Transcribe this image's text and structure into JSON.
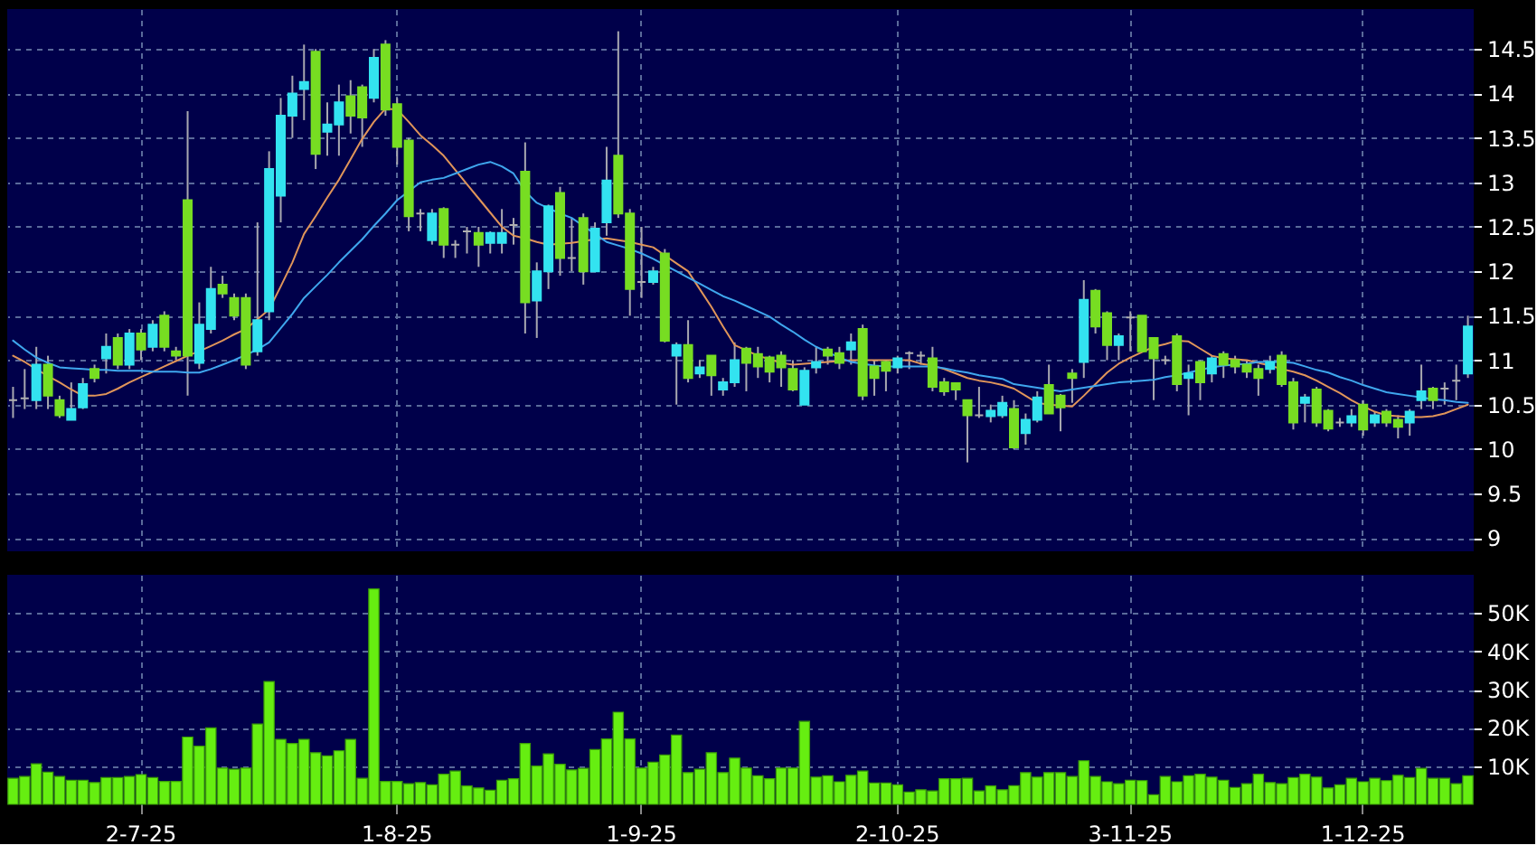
{
  "chart_data": [
    {
      "type": "candlestick",
      "tick_labels": "y",
      "grid": true,
      "categories": [
        null,
        null,
        null,
        null,
        null,
        null,
        null,
        null,
        null,
        null,
        null,
        null,
        null,
        null,
        null,
        null,
        null,
        null,
        null,
        null,
        null,
        null,
        null,
        null,
        null,
        null,
        null,
        null,
        null,
        null,
        null,
        null,
        null,
        null,
        null,
        null,
        null,
        null,
        null,
        null,
        null,
        null,
        null,
        null,
        null,
        null,
        null,
        null,
        null,
        null,
        null,
        null,
        null,
        null,
        null,
        null,
        null,
        null,
        null,
        null,
        null,
        null,
        null,
        null,
        null,
        null,
        null,
        null,
        null,
        null,
        null,
        null,
        null,
        null,
        null,
        null,
        null,
        null,
        null,
        null,
        null,
        null,
        null,
        null,
        null,
        null,
        null,
        null,
        null,
        null,
        null,
        null,
        null,
        null,
        null,
        null,
        null,
        null,
        null,
        null,
        null,
        null,
        null,
        null,
        null,
        null,
        null,
        null,
        null,
        null,
        null,
        null,
        null,
        null,
        null,
        null,
        null,
        null,
        null,
        null,
        null,
        null,
        null,
        null,
        null,
        null
      ],
      "ohlc": [
        [
          10.55,
          10.7,
          10.35,
          10.55
        ],
        [
          10.57,
          10.9,
          10.45,
          10.57
        ],
        [
          10.55,
          11.15,
          10.45,
          10.95
        ],
        [
          10.95,
          11.05,
          10.45,
          10.6
        ],
        [
          10.55,
          10.6,
          10.35,
          10.38
        ],
        [
          10.33,
          10.75,
          10.33,
          10.45
        ],
        [
          10.47,
          10.8,
          10.45,
          10.73
        ],
        [
          10.9,
          10.95,
          10.75,
          10.8
        ],
        [
          11.02,
          11.3,
          10.85,
          11.15
        ],
        [
          11.25,
          11.3,
          10.9,
          10.95
        ],
        [
          10.95,
          11.35,
          10.9,
          11.3
        ],
        [
          11.3,
          11.35,
          11.0,
          11.12
        ],
        [
          11.15,
          11.45,
          11.1,
          11.4
        ],
        [
          11.5,
          11.55,
          11.1,
          11.15
        ],
        [
          11.1,
          11.15,
          11.0,
          11.05
        ],
        [
          12.8,
          13.8,
          10.6,
          11.05
        ],
        [
          10.97,
          11.65,
          10.9,
          11.4
        ],
        [
          11.35,
          12.05,
          11.3,
          11.8
        ],
        [
          11.85,
          11.95,
          11.7,
          11.75
        ],
        [
          11.7,
          11.75,
          11.45,
          11.5
        ],
        [
          11.7,
          11.75,
          10.9,
          10.95
        ],
        [
          11.1,
          12.55,
          11.05,
          11.45
        ],
        [
          11.55,
          13.35,
          11.45,
          13.15
        ],
        [
          12.85,
          13.95,
          12.55,
          13.75
        ],
        [
          13.75,
          14.2,
          13.5,
          14.0
        ],
        [
          14.05,
          14.55,
          13.7,
          14.13
        ],
        [
          14.47,
          14.5,
          13.15,
          13.32
        ],
        [
          13.57,
          13.9,
          13.3,
          13.65
        ],
        [
          13.65,
          14.1,
          13.3,
          13.9
        ],
        [
          13.97,
          14.15,
          13.55,
          13.75
        ],
        [
          14.07,
          14.1,
          13.4,
          13.73
        ],
        [
          13.95,
          14.5,
          13.9,
          14.4
        ],
        [
          14.55,
          14.6,
          13.75,
          13.82
        ],
        [
          13.88,
          13.95,
          13.2,
          13.4
        ],
        [
          13.47,
          13.5,
          12.45,
          12.62
        ],
        [
          12.65,
          12.7,
          12.45,
          12.65
        ],
        [
          12.35,
          12.7,
          12.3,
          12.65
        ],
        [
          12.7,
          12.72,
          12.15,
          12.3
        ],
        [
          12.3,
          12.35,
          12.15,
          12.3
        ],
        [
          12.45,
          12.5,
          12.2,
          12.45
        ],
        [
          12.43,
          12.5,
          12.05,
          12.3
        ],
        [
          12.32,
          12.45,
          12.2,
          12.43
        ],
        [
          12.32,
          12.7,
          12.2,
          12.43
        ],
        [
          12.52,
          12.6,
          12.3,
          12.52
        ],
        [
          13.12,
          13.45,
          11.3,
          11.65
        ],
        [
          11.67,
          12.1,
          11.25,
          12.0
        ],
        [
          12.0,
          12.75,
          11.8,
          12.73
        ],
        [
          12.88,
          12.95,
          11.95,
          12.15
        ],
        [
          12.15,
          12.6,
          12.0,
          12.15
        ],
        [
          12.6,
          12.65,
          11.85,
          12.0
        ],
        [
          12.0,
          12.55,
          12.0,
          12.48
        ],
        [
          12.55,
          13.4,
          12.4,
          13.02
        ],
        [
          13.3,
          14.7,
          12.6,
          12.65
        ],
        [
          12.65,
          12.7,
          11.5,
          11.8
        ],
        [
          11.88,
          12.5,
          11.7,
          11.88
        ],
        [
          11.88,
          12.05,
          11.85,
          12.0
        ],
        [
          12.2,
          12.25,
          11.2,
          11.22
        ],
        [
          11.05,
          11.2,
          10.5,
          11.17
        ],
        [
          11.17,
          11.45,
          10.75,
          10.8
        ],
        [
          10.85,
          11.0,
          10.8,
          10.92
        ],
        [
          11.05,
          11.05,
          10.6,
          10.83
        ],
        [
          10.67,
          10.8,
          10.6,
          10.75
        ],
        [
          10.75,
          11.2,
          10.7,
          11.0
        ],
        [
          11.13,
          11.15,
          10.65,
          10.97
        ],
        [
          11.07,
          11.15,
          10.8,
          10.93
        ],
        [
          11.03,
          11.05,
          10.75,
          10.87
        ],
        [
          11.05,
          11.1,
          10.7,
          10.92
        ],
        [
          10.9,
          11.0,
          10.65,
          10.67
        ],
        [
          10.5,
          10.92,
          10.5,
          10.88
        ],
        [
          10.92,
          11.15,
          10.85,
          10.98
        ],
        [
          11.12,
          11.15,
          10.95,
          11.05
        ],
        [
          11.08,
          11.15,
          10.9,
          10.97
        ],
        [
          11.12,
          11.3,
          10.95,
          11.2
        ],
        [
          11.35,
          11.4,
          10.55,
          10.6
        ],
        [
          10.93,
          11.0,
          10.6,
          10.8
        ],
        [
          10.98,
          11.0,
          10.65,
          10.88
        ],
        [
          10.92,
          11.05,
          10.85,
          11.02
        ],
        [
          11.08,
          11.1,
          10.9,
          11.08
        ],
        [
          11.05,
          11.1,
          10.95,
          11.05
        ],
        [
          11.02,
          11.15,
          10.65,
          10.7
        ],
        [
          10.75,
          10.8,
          10.6,
          10.65
        ],
        [
          10.74,
          10.75,
          10.55,
          10.67
        ],
        [
          10.55,
          10.55,
          9.85,
          10.38
        ],
        [
          10.38,
          10.7,
          10.35,
          10.38
        ],
        [
          10.37,
          10.5,
          10.3,
          10.43
        ],
        [
          10.38,
          10.6,
          10.35,
          10.52
        ],
        [
          10.45,
          10.55,
          10.0,
          10.02
        ],
        [
          10.18,
          10.4,
          10.05,
          10.33
        ],
        [
          10.33,
          10.65,
          10.3,
          10.58
        ],
        [
          10.72,
          10.95,
          10.4,
          10.4
        ],
        [
          10.6,
          10.62,
          10.2,
          10.47
        ],
        [
          10.85,
          10.9,
          10.52,
          10.8
        ],
        [
          10.98,
          11.9,
          10.8,
          11.68
        ],
        [
          11.78,
          11.8,
          11.3,
          11.38
        ],
        [
          11.53,
          11.55,
          11.0,
          11.17
        ],
        [
          11.17,
          11.3,
          11.0,
          11.27
        ],
        [
          11.48,
          11.55,
          11.1,
          11.48
        ],
        [
          11.5,
          11.5,
          11.1,
          11.1
        ],
        [
          11.25,
          11.25,
          10.55,
          11.02
        ],
        [
          11.0,
          11.05,
          10.95,
          11.0
        ],
        [
          11.27,
          11.3,
          10.65,
          10.73
        ],
        [
          10.8,
          10.95,
          10.38,
          10.85
        ],
        [
          10.98,
          11.0,
          10.55,
          10.75
        ],
        [
          10.85,
          11.05,
          10.75,
          11.02
        ],
        [
          11.07,
          11.1,
          10.8,
          10.95
        ],
        [
          11.0,
          11.05,
          10.85,
          10.93
        ],
        [
          10.95,
          11.0,
          10.8,
          10.87
        ],
        [
          10.9,
          10.95,
          10.6,
          10.8
        ],
        [
          10.9,
          11.05,
          10.85,
          10.98
        ],
        [
          11.05,
          11.1,
          10.7,
          10.73
        ],
        [
          10.75,
          10.8,
          10.22,
          10.3
        ],
        [
          10.52,
          10.62,
          10.3,
          10.58
        ],
        [
          10.67,
          10.7,
          10.25,
          10.3
        ],
        [
          10.43,
          10.45,
          10.2,
          10.23
        ],
        [
          10.3,
          10.35,
          10.25,
          10.3
        ],
        [
          10.3,
          10.45,
          10.25,
          10.37
        ],
        [
          10.5,
          10.55,
          10.15,
          10.22
        ],
        [
          10.3,
          10.42,
          10.25,
          10.38
        ],
        [
          10.42,
          10.45,
          10.25,
          10.3
        ],
        [
          10.33,
          10.38,
          10.12,
          10.25
        ],
        [
          10.3,
          10.45,
          10.15,
          10.42
        ],
        [
          10.55,
          10.95,
          10.45,
          10.65
        ],
        [
          10.68,
          10.7,
          10.45,
          10.55
        ],
        [
          10.68,
          10.75,
          10.5,
          10.68
        ],
        [
          10.77,
          10.95,
          10.55,
          10.77
        ],
        [
          10.85,
          11.5,
          10.8,
          11.38
        ]
      ],
      "colors": [
        "#b0b0b0",
        "#b0b0b0",
        "#33e3f0",
        "#77dd22",
        "#77dd22",
        "#33e3f0",
        "#33e3f0",
        "#77dd22",
        "#33e3f0",
        "#77dd22",
        "#33e3f0",
        "#77dd22",
        "#33e3f0",
        "#77dd22",
        "#77dd22",
        "#77dd22",
        "#33e3f0",
        "#33e3f0",
        "#77dd22",
        "#77dd22",
        "#77dd22",
        "#33e3f0",
        "#33e3f0",
        "#33e3f0",
        "#33e3f0",
        "#33e3f0",
        "#77dd22",
        "#33e3f0",
        "#33e3f0",
        "#77dd22",
        "#77dd22",
        "#33e3f0",
        "#77dd22",
        "#77dd22",
        "#77dd22",
        "#b0b0b0",
        "#33e3f0",
        "#77dd22",
        "#b0b0b0",
        "#b0b0b0",
        "#77dd22",
        "#33e3f0",
        "#33e3f0",
        "#b0b0b0",
        "#77dd22",
        "#33e3f0",
        "#33e3f0",
        "#77dd22",
        "#b0b0b0",
        "#77dd22",
        "#33e3f0",
        "#33e3f0",
        "#77dd22",
        "#77dd22",
        "#b0b0b0",
        "#33e3f0",
        "#77dd22",
        "#33e3f0",
        "#77dd22",
        "#33e3f0",
        "#77dd22",
        "#33e3f0",
        "#33e3f0",
        "#77dd22",
        "#77dd22",
        "#77dd22",
        "#77dd22",
        "#77dd22",
        "#33e3f0",
        "#33e3f0",
        "#77dd22",
        "#77dd22",
        "#33e3f0",
        "#77dd22",
        "#77dd22",
        "#77dd22",
        "#33e3f0",
        "#b0b0b0",
        "#b0b0b0",
        "#77dd22",
        "#77dd22",
        "#77dd22",
        "#77dd22",
        "#b0b0b0",
        "#33e3f0",
        "#33e3f0",
        "#77dd22",
        "#33e3f0",
        "#33e3f0",
        "#77dd22",
        "#77dd22",
        "#77dd22",
        "#33e3f0",
        "#77dd22",
        "#77dd22",
        "#33e3f0",
        "#b0b0b0",
        "#77dd22",
        "#77dd22",
        "#b0b0b0",
        "#77dd22",
        "#33e3f0",
        "#77dd22",
        "#33e3f0",
        "#77dd22",
        "#77dd22",
        "#77dd22",
        "#77dd22",
        "#33e3f0",
        "#77dd22",
        "#77dd22",
        "#33e3f0",
        "#77dd22",
        "#77dd22",
        "#b0b0b0",
        "#33e3f0",
        "#77dd22",
        "#33e3f0",
        "#77dd22",
        "#77dd22",
        "#33e3f0",
        "#33e3f0",
        "#77dd22",
        "#b0b0b0",
        "#b0b0b0",
        "#33e3f0"
      ],
      "series": [
        {
          "type": "line",
          "color": "#e0955a",
          "values": [
            11.05,
            10.98,
            10.9,
            10.82,
            10.75,
            10.67,
            10.6,
            10.6,
            10.62,
            10.68,
            10.75,
            10.81,
            10.87,
            10.93,
            10.99,
            11.05,
            11.1,
            11.16,
            11.22,
            11.29,
            11.35,
            11.46,
            11.57,
            11.83,
            12.1,
            12.42,
            12.62,
            12.83,
            13.03,
            13.26,
            13.49,
            13.68,
            13.83,
            13.82,
            13.68,
            13.53,
            13.42,
            13.3,
            13.14,
            12.98,
            12.82,
            12.66,
            12.5,
            12.4,
            12.37,
            12.33,
            12.3,
            12.31,
            12.32,
            12.34,
            12.36,
            12.37,
            12.35,
            12.33,
            12.3,
            12.27,
            12.18,
            12.09,
            12.0,
            11.8,
            11.6,
            11.38,
            11.17,
            11.11,
            11.05,
            11.01,
            10.97,
            10.95,
            10.96,
            10.97,
            10.98,
            10.99,
            11.0,
            11.0,
            11.0,
            11.0,
            11.0,
            11.0,
            10.96,
            10.94,
            10.9,
            10.85,
            10.8,
            10.77,
            10.75,
            10.72,
            10.68,
            10.6,
            10.52,
            10.5,
            10.49,
            10.48,
            10.6,
            10.73,
            10.86,
            10.96,
            11.03,
            11.09,
            11.15,
            11.18,
            11.22,
            11.21,
            11.13,
            11.05,
            11.02,
            11.01,
            11.0,
            10.97,
            10.94,
            10.9,
            10.87,
            10.83,
            10.77,
            10.7,
            10.63,
            10.55,
            10.48,
            10.42,
            10.38,
            10.37,
            10.36,
            10.36,
            10.37,
            10.4,
            10.45,
            10.5
          ]
        },
        {
          "type": "line",
          "color": "#3fa7ee",
          "values": [
            11.22,
            11.12,
            11.03,
            10.97,
            10.92,
            10.91,
            10.9,
            10.89,
            10.89,
            10.88,
            10.88,
            10.88,
            10.87,
            10.87,
            10.87,
            10.86,
            10.86,
            10.9,
            10.95,
            11.0,
            11.06,
            11.12,
            11.2,
            11.36,
            11.52,
            11.7,
            11.83,
            11.96,
            12.1,
            12.23,
            12.36,
            12.51,
            12.65,
            12.8,
            12.9,
            13.0,
            13.03,
            13.05,
            13.1,
            13.15,
            13.2,
            13.23,
            13.18,
            13.1,
            12.9,
            12.77,
            12.71,
            12.65,
            12.6,
            12.51,
            12.42,
            12.33,
            12.29,
            12.25,
            12.2,
            12.14,
            12.07,
            12.0,
            11.93,
            11.86,
            11.79,
            11.72,
            11.67,
            11.61,
            11.55,
            11.49,
            11.4,
            11.32,
            11.23,
            11.15,
            11.09,
            11.03,
            10.98,
            10.96,
            10.94,
            10.93,
            10.93,
            10.93,
            10.93,
            10.93,
            10.91,
            10.88,
            10.86,
            10.83,
            10.81,
            10.79,
            10.73,
            10.71,
            10.69,
            10.67,
            10.65,
            10.67,
            10.69,
            10.71,
            10.73,
            10.75,
            10.76,
            10.77,
            10.78,
            10.81,
            10.83,
            10.86,
            10.89,
            10.92,
            10.94,
            10.95,
            10.96,
            10.98,
            10.98,
            10.98,
            10.97,
            10.93,
            10.89,
            10.86,
            10.81,
            10.77,
            10.72,
            10.68,
            10.64,
            10.62,
            10.6,
            10.58,
            10.56,
            10.55,
            10.53,
            10.52
          ]
        }
      ],
      "ylim": [
        8.85,
        14.95
      ],
      "yticks": [
        9,
        9.5,
        10,
        10.5,
        11,
        11.5,
        12,
        12.5,
        13,
        13.5,
        14,
        14.5
      ]
    },
    {
      "type": "bar",
      "grid": true,
      "color": "#66ee11",
      "categories": [
        null,
        null,
        null,
        null,
        null,
        null,
        null,
        null,
        null,
        null,
        null,
        "2-7-25",
        null,
        null,
        null,
        null,
        null,
        null,
        null,
        null,
        null,
        null,
        null,
        null,
        null,
        null,
        null,
        null,
        null,
        null,
        null,
        null,
        null,
        "1-8-25",
        null,
        null,
        null,
        null,
        null,
        null,
        null,
        null,
        null,
        null,
        null,
        null,
        null,
        null,
        null,
        null,
        null,
        null,
        null,
        null,
        "1-9-25",
        null,
        null,
        null,
        null,
        null,
        null,
        null,
        null,
        null,
        null,
        null,
        null,
        null,
        null,
        null,
        null,
        null,
        null,
        null,
        null,
        null,
        "2-10-25",
        null,
        null,
        null,
        null,
        null,
        null,
        null,
        null,
        null,
        null,
        null,
        null,
        null,
        null,
        null,
        null,
        null,
        null,
        null,
        "3-11-25",
        null,
        null,
        null,
        null,
        null,
        null,
        null,
        null,
        null,
        null,
        null,
        null,
        null,
        null,
        null,
        null,
        null,
        null,
        null,
        "1-12-25",
        null,
        null,
        null,
        null,
        null,
        null,
        null,
        null,
        null
      ],
      "values": [
        6800,
        7300,
        10600,
        8400,
        7300,
        6300,
        6300,
        5700,
        7000,
        7000,
        7300,
        7800,
        7000,
        6000,
        6000,
        17600,
        15200,
        20000,
        9500,
        9200,
        9500,
        21000,
        32100,
        17000,
        15900,
        17000,
        13500,
        12700,
        14000,
        17000,
        6800,
        56300,
        6000,
        6000,
        5400,
        5700,
        5100,
        7900,
        8700,
        4800,
        4300,
        3700,
        6300,
        6700,
        15900,
        10000,
        13200,
        10500,
        9000,
        9400,
        14300,
        17100,
        24100,
        17100,
        9500,
        11000,
        12900,
        18100,
        8300,
        9200,
        13500,
        8300,
        12100,
        9500,
        7500,
        6700,
        9500,
        9500,
        21700,
        7100,
        7500,
        5900,
        7600,
        8700,
        5600,
        5600,
        5100,
        3200,
        3800,
        3500,
        6700,
        6700,
        6800,
        3500,
        4800,
        3800,
        4900,
        8300,
        7100,
        8300,
        8300,
        7300,
        11400,
        7300,
        5900,
        5400,
        6300,
        6200,
        2500,
        7300,
        5900,
        7500,
        7900,
        7100,
        6300,
        4400,
        5400,
        7900,
        5700,
        5400,
        7000,
        7900,
        7100,
        4300,
        5100,
        6800,
        5900,
        6800,
        6200,
        7600,
        7000,
        9400,
        6800,
        6800,
        5400,
        7500
      ],
      "ylim": [
        0,
        60000
      ],
      "yticks": [
        {
          "value": 10000,
          "label": "10K"
        },
        {
          "value": 20000,
          "label": "20K"
        },
        {
          "value": 30000,
          "label": "30K"
        },
        {
          "value": 40000,
          "label": "40K"
        },
        {
          "value": 50000,
          "label": "50K"
        }
      ]
    }
  ]
}
